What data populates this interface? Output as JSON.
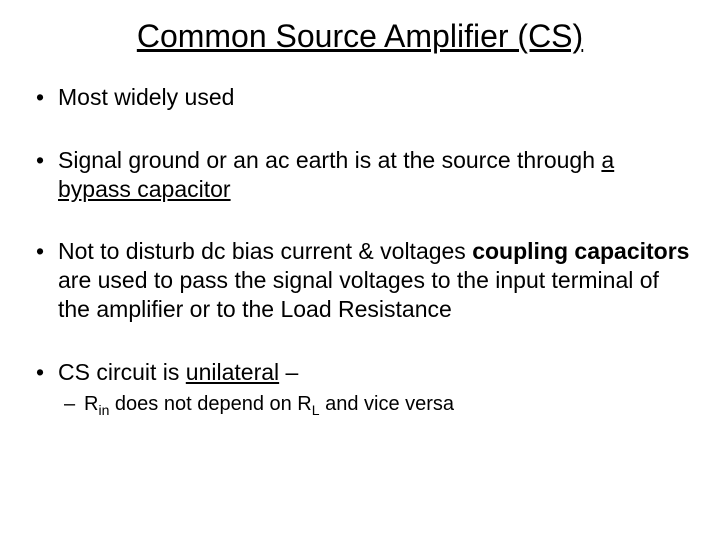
{
  "title": "Common Source Amplifier (CS)",
  "bullets": {
    "b1": "Most widely used",
    "b2_part1": "Signal ground or an ac earth is at the source through ",
    "b2_part2_underlined": "a bypass capacitor",
    "b3_part1": "Not to disturb dc bias current & voltages ",
    "b3_part2_bold": "coupling capacitors",
    "b3_part3": " are used to pass the signal voltages to the input terminal of the amplifier or to the Load Resistance",
    "b4_part1": "CS circuit is ",
    "b4_part2_underlined": "unilateral",
    "b4_part3": " –",
    "sub_part1": "R",
    "sub_part2": "in",
    "sub_part3": " does not depend on R",
    "sub_part4": "L",
    "sub_part5": " and vice versa"
  },
  "colors": {
    "background": "#ffffff",
    "text": "#000000"
  },
  "fonts": {
    "title_size": 32,
    "bullet_size": 23,
    "sub_bullet_size": 20
  }
}
